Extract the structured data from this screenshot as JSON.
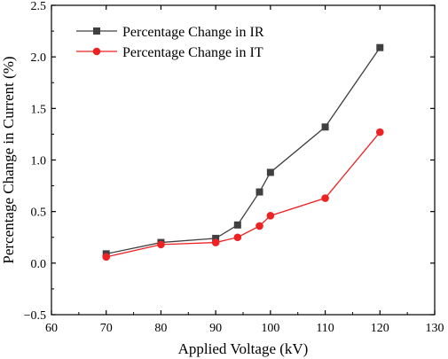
{
  "chart_data": {
    "type": "line",
    "title": "",
    "xlabel": "Applied Voltage (kV)",
    "ylabel": "Percentage Change in Current (%)",
    "xlim": [
      60,
      130
    ],
    "ylim": [
      -0.5,
      2.5
    ],
    "xticks": [
      60,
      70,
      80,
      90,
      100,
      110,
      120,
      130
    ],
    "yticks": [
      -0.5,
      0.0,
      0.5,
      1.0,
      1.5,
      2.0,
      2.5
    ],
    "xtick_labels": [
      "60",
      "70",
      "80",
      "90",
      "100",
      "110",
      "120",
      "130"
    ],
    "ytick_labels": [
      "−0.5",
      "0.0",
      "0.5",
      "1.0",
      "1.5",
      "2.0",
      "2.5"
    ],
    "grid": false,
    "legend_position": "top-left",
    "series": [
      {
        "name": "Percentage Change in IR",
        "color": "#404040",
        "marker": "square",
        "x": [
          70,
          80,
          90,
          94,
          98,
          100,
          110,
          120
        ],
        "y": [
          0.09,
          0.2,
          0.24,
          0.37,
          0.69,
          0.88,
          1.32,
          2.09
        ]
      },
      {
        "name": "Percentage Change in IT",
        "color": "#ee2222",
        "marker": "circle",
        "x": [
          70,
          80,
          90,
          94,
          98,
          100,
          110,
          120
        ],
        "y": [
          0.06,
          0.18,
          0.2,
          0.25,
          0.36,
          0.46,
          0.63,
          1.27
        ]
      }
    ]
  }
}
